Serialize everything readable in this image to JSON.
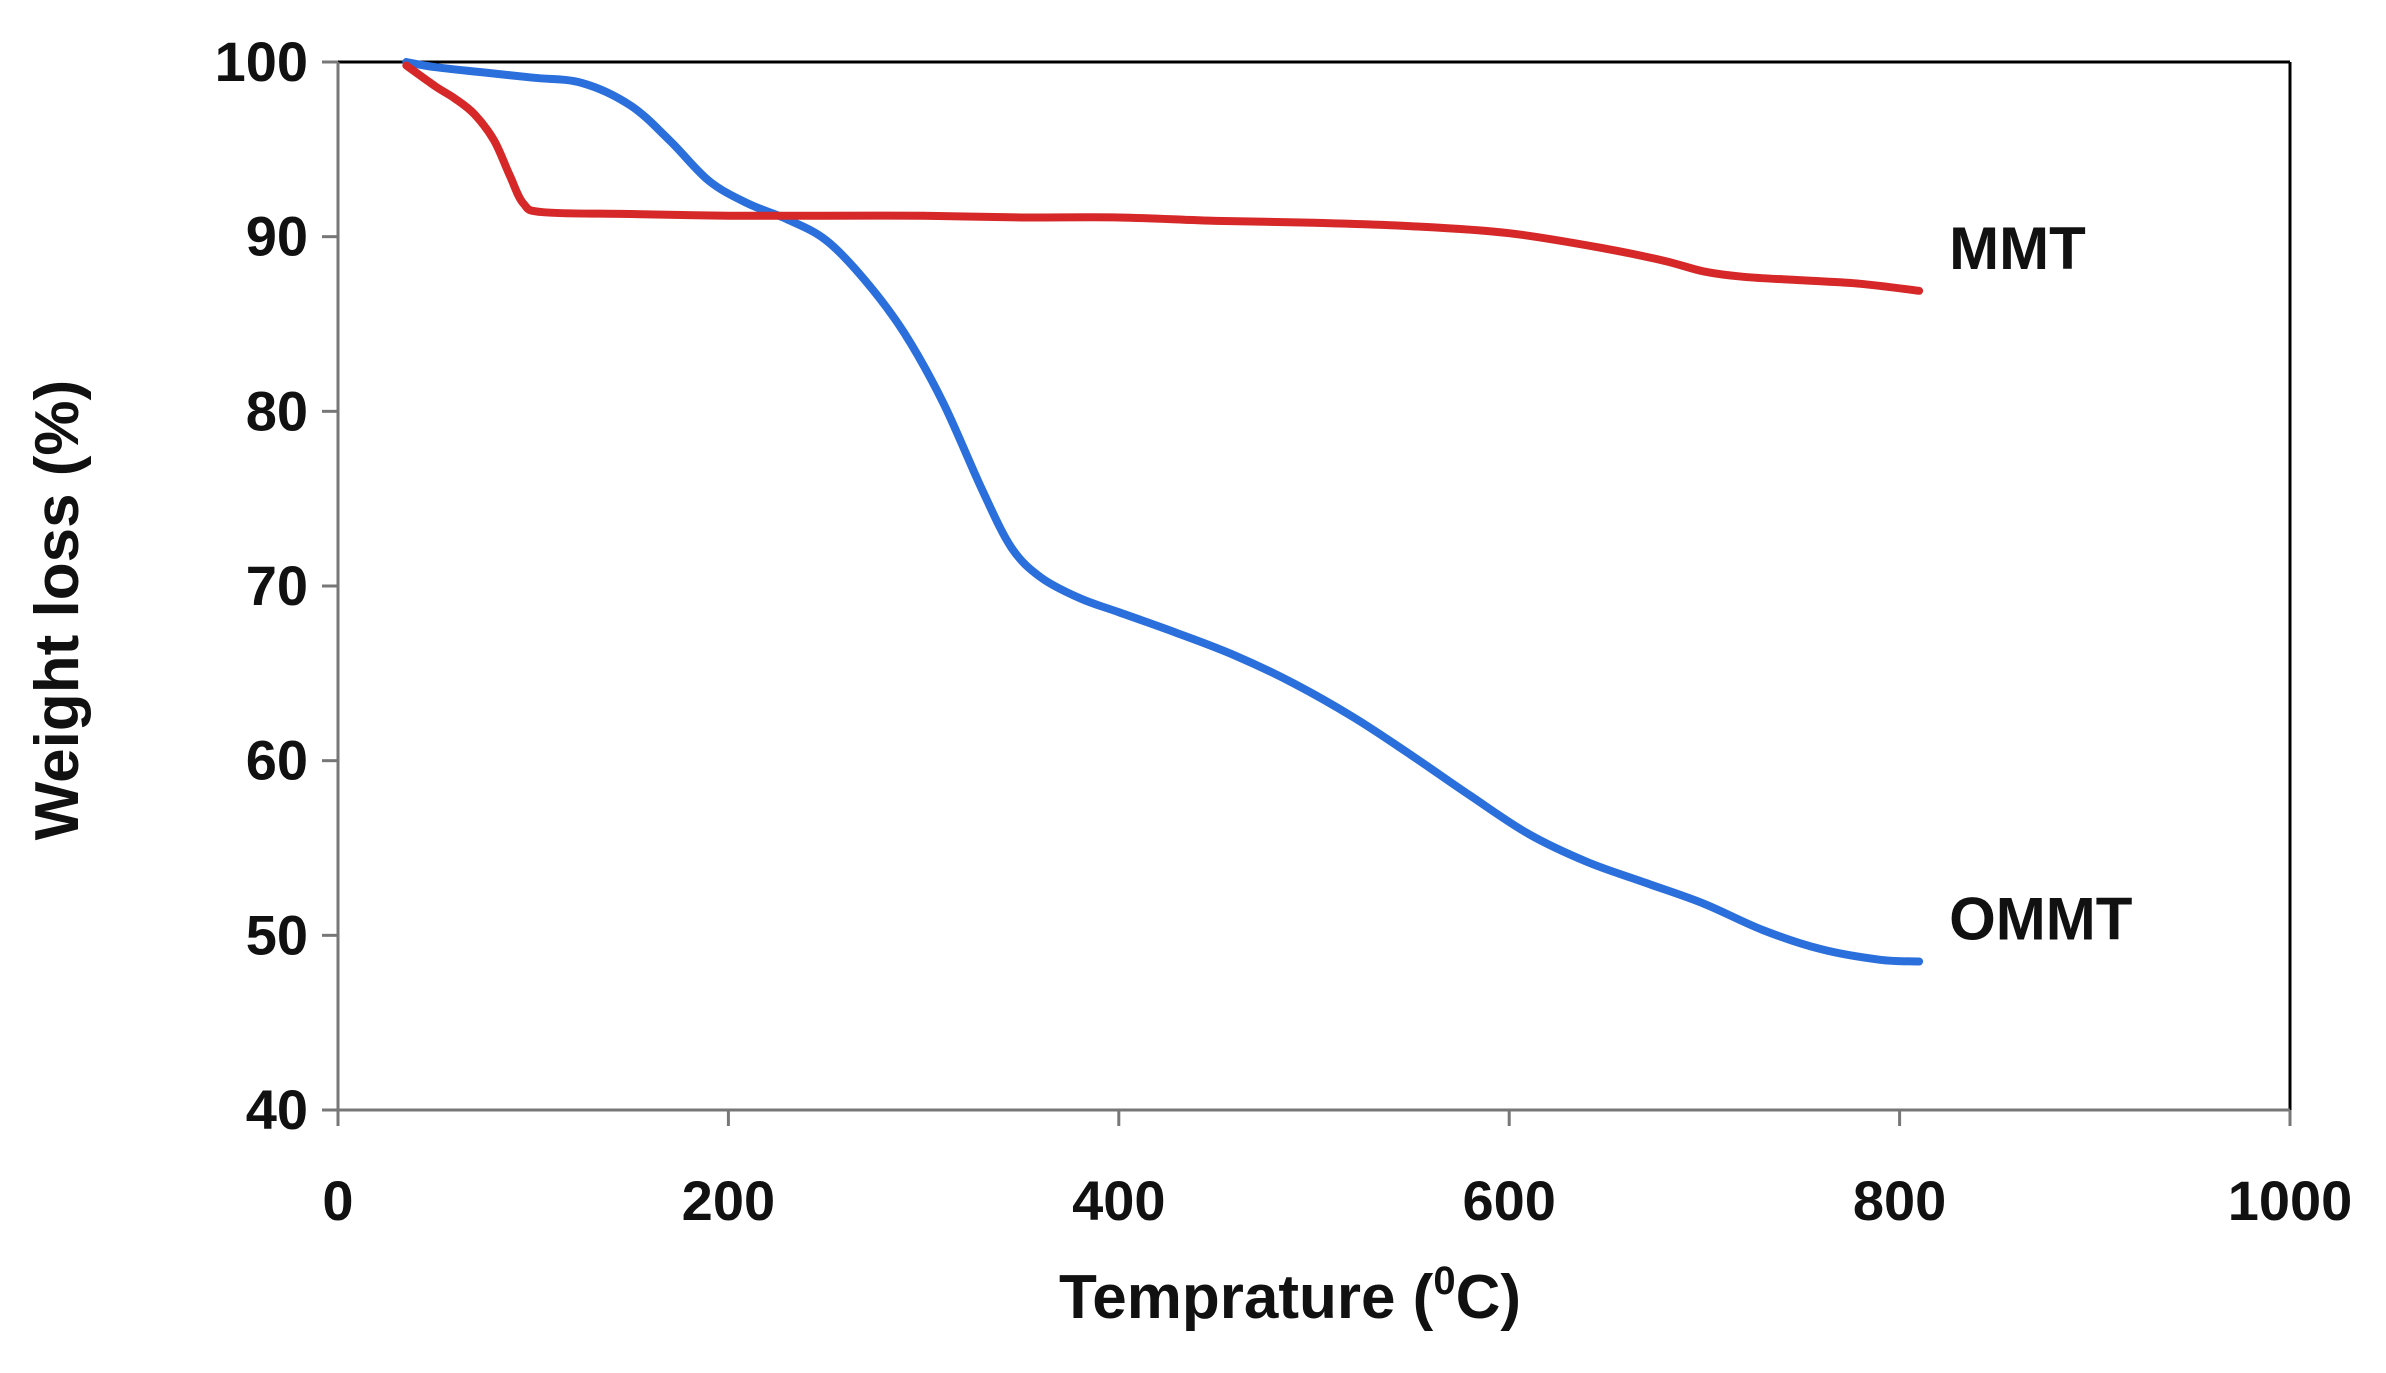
{
  "chart_data": {
    "type": "line",
    "title": "",
    "xlabel": "Temprature (",
    "xlabel_superscript": "0",
    "xlabel_unit": "C)",
    "ylabel": "Weight loss (%)",
    "xlim": [
      0,
      1000
    ],
    "ylim": [
      40,
      100
    ],
    "x_ticks": [
      0,
      200,
      400,
      600,
      800,
      1000
    ],
    "y_ticks": [
      40,
      50,
      60,
      70,
      80,
      90,
      100
    ],
    "x_tick_labels": [
      "0",
      "200",
      "400",
      "600",
      "800",
      "1000"
    ],
    "y_tick_labels": [
      "40",
      "50",
      "60",
      "70",
      "80",
      "90",
      "100"
    ],
    "grid": false,
    "legend": "none",
    "series": [
      {
        "name": "MMT",
        "label": "MMT",
        "color": "#d62828",
        "points": [
          [
            35,
            99.8
          ],
          [
            50,
            98.6
          ],
          [
            60,
            97.9
          ],
          [
            70,
            97.0
          ],
          [
            80,
            95.5
          ],
          [
            88,
            93.5
          ],
          [
            95,
            91.9
          ],
          [
            105,
            91.4
          ],
          [
            150,
            91.3
          ],
          [
            200,
            91.2
          ],
          [
            250,
            91.2
          ],
          [
            300,
            91.2
          ],
          [
            350,
            91.1
          ],
          [
            400,
            91.1
          ],
          [
            450,
            90.9
          ],
          [
            500,
            90.8
          ],
          [
            550,
            90.6
          ],
          [
            600,
            90.2
          ],
          [
            650,
            89.3
          ],
          [
            680,
            88.6
          ],
          [
            700,
            88.0
          ],
          [
            720,
            87.7
          ],
          [
            750,
            87.5
          ],
          [
            780,
            87.3
          ],
          [
            810,
            86.9
          ]
        ]
      },
      {
        "name": "OMMT",
        "label": "OMMT",
        "color": "#2a6fdb",
        "points": [
          [
            35,
            100
          ],
          [
            50,
            99.7
          ],
          [
            75,
            99.4
          ],
          [
            100,
            99.1
          ],
          [
            125,
            98.8
          ],
          [
            150,
            97.5
          ],
          [
            170,
            95.5
          ],
          [
            190,
            93.2
          ],
          [
            210,
            91.9
          ],
          [
            230,
            91.0
          ],
          [
            250,
            89.8
          ],
          [
            270,
            87.5
          ],
          [
            290,
            84.5
          ],
          [
            310,
            80.5
          ],
          [
            330,
            75.5
          ],
          [
            345,
            72.2
          ],
          [
            360,
            70.5
          ],
          [
            380,
            69.3
          ],
          [
            400,
            68.5
          ],
          [
            430,
            67.3
          ],
          [
            460,
            66.0
          ],
          [
            490,
            64.4
          ],
          [
            520,
            62.5
          ],
          [
            550,
            60.3
          ],
          [
            580,
            58.0
          ],
          [
            610,
            55.8
          ],
          [
            640,
            54.2
          ],
          [
            670,
            53.0
          ],
          [
            700,
            51.8
          ],
          [
            730,
            50.3
          ],
          [
            760,
            49.2
          ],
          [
            790,
            48.6
          ],
          [
            810,
            48.5
          ]
        ]
      }
    ]
  }
}
